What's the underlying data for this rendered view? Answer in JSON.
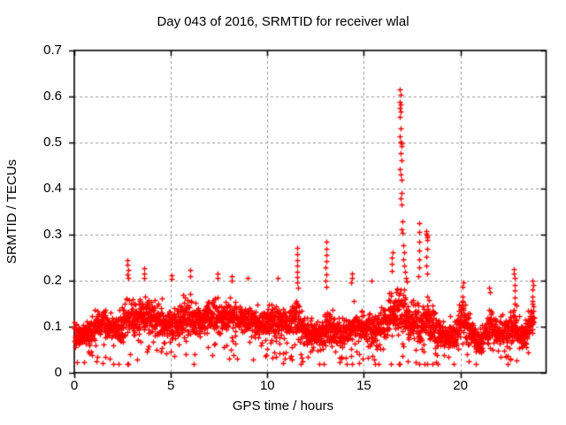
{
  "chart_data": {
    "type": "scatter",
    "title": "Day 043 of 2016, SRMTID for receiver wlal",
    "xlabel": "GPS time / hours",
    "ylabel": "SRMTID / TECUs",
    "xlim": [
      0,
      24.44
    ],
    "ylim": [
      0,
      0.7
    ],
    "xticks": [
      0,
      5,
      10,
      15,
      20
    ],
    "xtick_labels": [
      "0",
      "5",
      "10",
      "15",
      "20"
    ],
    "yticks": [
      0,
      0.1,
      0.2,
      0.3,
      0.4,
      0.5,
      0.6,
      0.7
    ],
    "ytick_labels": [
      "0",
      "0.1",
      "0.2",
      "0.3",
      "0.4",
      "0.5",
      "0.6",
      "0.7"
    ],
    "grid": true,
    "grid_style": "dashed",
    "grid_color": "#969696",
    "legend": "none",
    "marker": "plus",
    "marker_color": "#ff0000",
    "border_color": "#000000",
    "sample_step_hours": 0.0167,
    "t_end": 23.8,
    "envelope": [
      [
        0,
        0.085,
        0.035
      ],
      [
        0.4,
        0.08,
        0.035
      ],
      [
        0.9,
        0.095,
        0.045
      ],
      [
        1.4,
        0.115,
        0.055
      ],
      [
        1.9,
        0.1,
        0.05
      ],
      [
        2.3,
        0.095,
        0.055
      ],
      [
        2.75,
        0.125,
        0.07
      ],
      [
        3.1,
        0.115,
        0.055
      ],
      [
        3.6,
        0.13,
        0.06
      ],
      [
        4.1,
        0.12,
        0.055
      ],
      [
        4.6,
        0.11,
        0.05
      ],
      [
        5.1,
        0.1,
        0.055
      ],
      [
        5.6,
        0.125,
        0.06
      ],
      [
        6.1,
        0.12,
        0.06
      ],
      [
        6.6,
        0.115,
        0.055
      ],
      [
        7.1,
        0.125,
        0.06
      ],
      [
        7.6,
        0.12,
        0.055
      ],
      [
        8.1,
        0.125,
        0.06
      ],
      [
        8.6,
        0.115,
        0.055
      ],
      [
        9.1,
        0.115,
        0.05
      ],
      [
        9.6,
        0.1,
        0.055
      ],
      [
        10.1,
        0.11,
        0.05
      ],
      [
        10.6,
        0.11,
        0.055
      ],
      [
        11.1,
        0.105,
        0.05
      ],
      [
        11.55,
        0.12,
        0.07
      ],
      [
        12.0,
        0.095,
        0.05
      ],
      [
        12.5,
        0.08,
        0.05
      ],
      [
        13.05,
        0.1,
        0.07
      ],
      [
        13.5,
        0.09,
        0.05
      ],
      [
        14.0,
        0.08,
        0.05
      ],
      [
        14.35,
        0.1,
        0.06
      ],
      [
        14.8,
        0.1,
        0.055
      ],
      [
        15.3,
        0.095,
        0.055
      ],
      [
        15.8,
        0.1,
        0.06
      ],
      [
        16.3,
        0.125,
        0.07
      ],
      [
        16.9,
        0.13,
        0.08
      ],
      [
        17.4,
        0.105,
        0.06
      ],
      [
        17.9,
        0.11,
        0.07
      ],
      [
        18.25,
        0.12,
        0.08
      ],
      [
        18.7,
        0.095,
        0.06
      ],
      [
        19.2,
        0.075,
        0.05
      ],
      [
        19.7,
        0.085,
        0.05
      ],
      [
        20.1,
        0.125,
        0.055
      ],
      [
        20.5,
        0.09,
        0.05
      ],
      [
        20.9,
        0.06,
        0.04
      ],
      [
        21.3,
        0.09,
        0.05
      ],
      [
        21.6,
        0.105,
        0.05
      ],
      [
        22.0,
        0.08,
        0.045
      ],
      [
        22.4,
        0.09,
        0.05
      ],
      [
        22.75,
        0.115,
        0.055
      ],
      [
        23.1,
        0.08,
        0.05
      ],
      [
        23.45,
        0.09,
        0.055
      ],
      [
        23.8,
        0.125,
        0.05
      ]
    ],
    "outlier_strings": [
      {
        "t": 2.78,
        "values": [
          0.245,
          0.235,
          0.224,
          0.214,
          0.205
        ]
      },
      {
        "t": 3.62,
        "values": [
          0.226,
          0.215,
          0.205
        ]
      },
      {
        "t": 5.02,
        "values": [
          0.212,
          0.204
        ]
      },
      {
        "t": 6.0,
        "values": [
          0.224,
          0.21
        ]
      },
      {
        "t": 7.42,
        "values": [
          0.215,
          0.205
        ]
      },
      {
        "t": 8.15,
        "values": [
          0.21,
          0.2
        ]
      },
      {
        "t": 9.0,
        "values": [
          0.205
        ]
      },
      {
        "t": 10.5,
        "values": [
          0.205
        ]
      },
      {
        "t": 11.55,
        "values": [
          0.272,
          0.258,
          0.245,
          0.232,
          0.22,
          0.208,
          0.196
        ]
      },
      {
        "t": 13.05,
        "values": [
          0.284,
          0.27,
          0.256,
          0.242,
          0.228,
          0.214,
          0.2,
          0.187
        ]
      },
      {
        "t": 14.35,
        "values": [
          0.215,
          0.205,
          0.196
        ]
      },
      {
        "t": 15.4,
        "values": [
          0.2
        ]
      },
      {
        "t": 16.45,
        "values": [
          0.262,
          0.25,
          0.236,
          0.222
        ]
      },
      {
        "t": 17.85,
        "values": [
          0.325,
          0.305,
          0.285,
          0.265,
          0.246,
          0.228,
          0.21
        ]
      },
      {
        "t": 18.25,
        "values": [
          0.307,
          0.301,
          0.299,
          0.295,
          0.288,
          0.27,
          0.251,
          0.233,
          0.215
        ]
      },
      {
        "t": 20.15,
        "values": [
          0.196,
          0.186
        ]
      },
      {
        "t": 21.5,
        "values": [
          0.185,
          0.175
        ]
      },
      {
        "t": 22.8,
        "values": [
          0.225,
          0.215,
          0.205,
          0.19,
          0.178,
          0.164,
          0.15
        ]
      },
      {
        "t": 23.75,
        "values": [
          0.2,
          0.19,
          0.18,
          0.165,
          0.15
        ]
      }
    ],
    "main_spike": [
      [
        16.86,
        0.615
      ],
      [
        16.89,
        0.603
      ],
      [
        16.87,
        0.589
      ],
      [
        16.9,
        0.583
      ],
      [
        16.85,
        0.575
      ],
      [
        16.91,
        0.568
      ],
      [
        16.88,
        0.556
      ],
      [
        16.92,
        0.53
      ],
      [
        16.87,
        0.514
      ],
      [
        16.9,
        0.502
      ],
      [
        16.93,
        0.499
      ],
      [
        16.95,
        0.493
      ],
      [
        16.89,
        0.477
      ],
      [
        16.93,
        0.461
      ],
      [
        16.88,
        0.443
      ],
      [
        16.92,
        0.431
      ],
      [
        16.95,
        0.419
      ],
      [
        16.94,
        0.391
      ],
      [
        16.9,
        0.379
      ],
      [
        16.97,
        0.366
      ],
      [
        16.98,
        0.329
      ],
      [
        16.95,
        0.312
      ],
      [
        17.0,
        0.303
      ],
      [
        17.03,
        0.276
      ],
      [
        17.07,
        0.262
      ],
      [
        17.05,
        0.247
      ],
      [
        17.1,
        0.232
      ],
      [
        17.14,
        0.219
      ],
      [
        17.19,
        0.206
      ],
      [
        17.24,
        0.198
      ]
    ]
  }
}
